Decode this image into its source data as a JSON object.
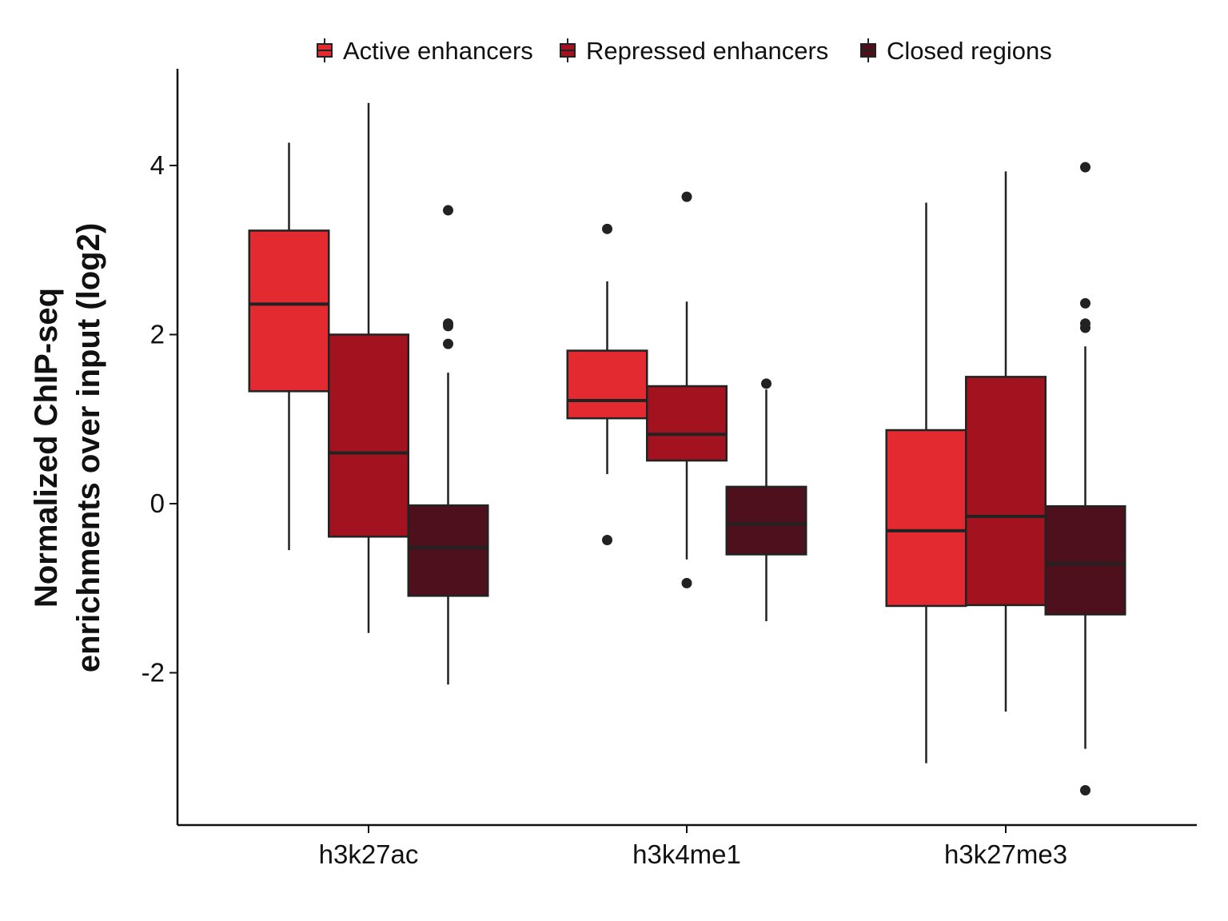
{
  "chart_data": {
    "type": "box",
    "title": "",
    "xlabel": "",
    "ylabel_lines": [
      "Normalized ChIP-seq",
      "enrichments over input (log2)"
    ],
    "categories": [
      "h3k27ac",
      "h3k4me1",
      "h3k27me3"
    ],
    "ylim": [
      -3.8,
      5.2
    ],
    "yticks": [
      -2,
      0,
      2,
      4
    ],
    "ytick_labels": [
      "-2",
      "0",
      "2",
      "4"
    ],
    "grid": false,
    "legend_position": "top",
    "series": [
      {
        "name": "Active enhancers",
        "color": "#e32a30",
        "boxes": [
          {
            "whisker_low": -0.55,
            "q1": 1.33,
            "median": 2.36,
            "q3": 3.23,
            "whisker_high": 4.27,
            "outliers": []
          },
          {
            "whisker_low": 0.35,
            "q1": 1.01,
            "median": 1.22,
            "q3": 1.81,
            "whisker_high": 2.63,
            "outliers": [
              3.25,
              -0.43
            ]
          },
          {
            "whisker_low": -3.07,
            "q1": -1.21,
            "median": -0.32,
            "q3": 0.87,
            "whisker_high": 3.56,
            "outliers": []
          }
        ]
      },
      {
        "name": "Repressed enhancers",
        "color": "#a3131f",
        "boxes": [
          {
            "whisker_low": -1.53,
            "q1": -0.39,
            "median": 0.6,
            "q3": 2.0,
            "whisker_high": 4.74,
            "outliers": []
          },
          {
            "whisker_low": -0.66,
            "q1": 0.51,
            "median": 0.82,
            "q3": 1.39,
            "whisker_high": 2.39,
            "outliers": [
              3.63,
              -0.94
            ]
          },
          {
            "whisker_low": -2.46,
            "q1": -1.2,
            "median": -0.15,
            "q3": 1.5,
            "whisker_high": 3.93,
            "outliers": []
          }
        ]
      },
      {
        "name": "Closed regions",
        "color": "#4e101d",
        "boxes": [
          {
            "whisker_low": -2.14,
            "q1": -1.09,
            "median": -0.52,
            "q3": -0.02,
            "whisker_high": 1.55,
            "outliers": [
              3.47,
              2.13,
              2.1,
              1.89
            ]
          },
          {
            "whisker_low": -1.39,
            "q1": -0.6,
            "median": -0.24,
            "q3": 0.2,
            "whisker_high": 1.35,
            "outliers": [
              1.42
            ]
          },
          {
            "whisker_low": -2.9,
            "q1": -1.31,
            "median": -0.71,
            "q3": -0.03,
            "whisker_high": 1.86,
            "outliers": [
              3.98,
              2.37,
              2.13,
              2.08,
              -3.39
            ]
          }
        ]
      }
    ]
  }
}
